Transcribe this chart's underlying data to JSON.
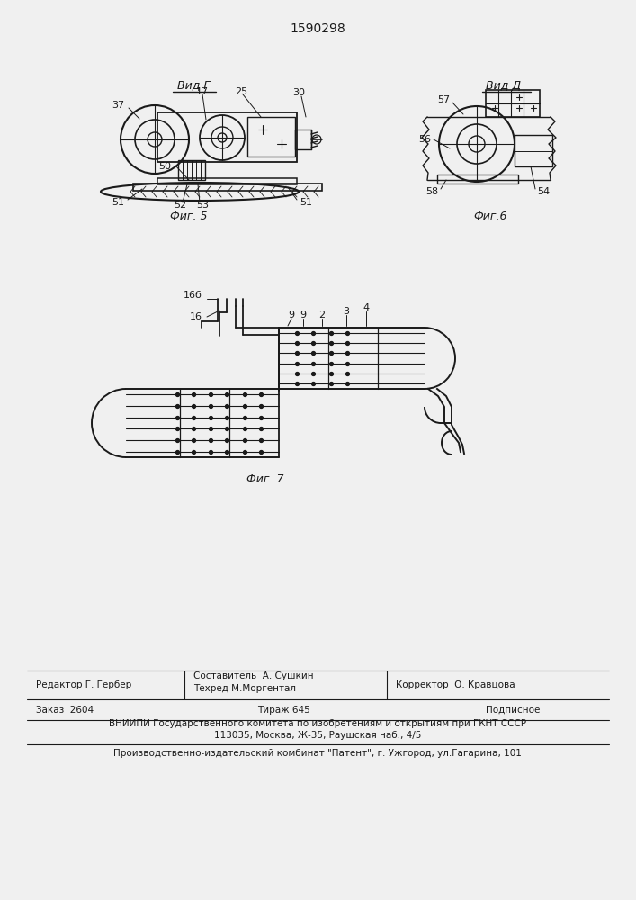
{
  "patent_number": "1590298",
  "bg_color": "#f0f0f0",
  "line_color": "#1a1a1a",
  "fig5_label": "Фиг. 5",
  "fig6_label": "Фиг.6",
  "fig7_label": "Фиг. 7",
  "vid_g_label": "Вид Г",
  "vid_d_label": "Вид Д"
}
